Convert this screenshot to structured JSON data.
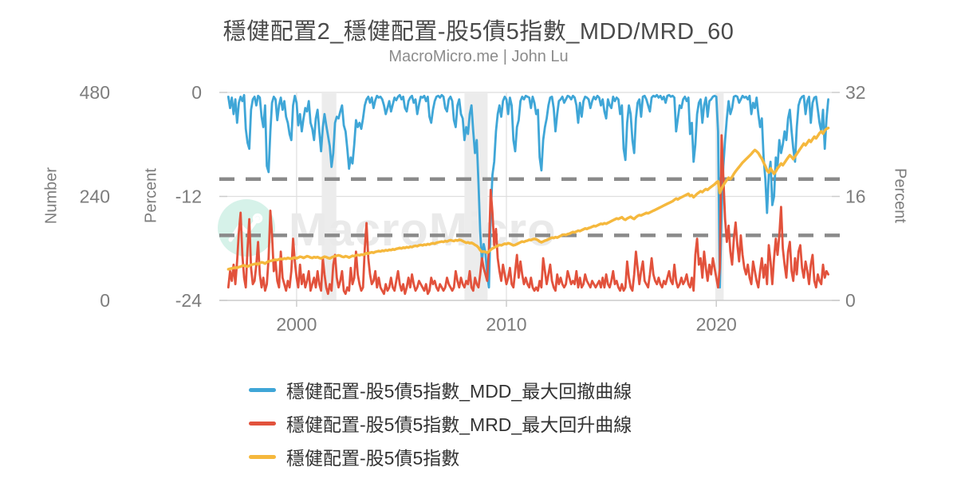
{
  "title": "穩健配置2_穩健配置-股5債5指數_MDD/MRD_60",
  "subtitle": "MacroMicro.me | John Lu",
  "watermark": {
    "text": "MacroMicro",
    "icon": "macromicro-line-chart-logo",
    "circle_color": "#d6f2e9",
    "text_color": "#eaeaea"
  },
  "colors": {
    "grid": "#dedede",
    "axis_line": "#cccccc",
    "tick_label": "#7d7d7d",
    "dashed_threshold": "#8a8a8a",
    "recession_band": "#ececec",
    "background": "#ffffff"
  },
  "chart_data": {
    "type": "line",
    "title": "穩健配置2_穩健配置-股5債5指數_MDD/MRD_60",
    "subtitle": "MacroMicro.me | John Lu",
    "x_start": 1996.75,
    "x_step_years": 0.0833333,
    "x_domain": [
      1996.7,
      2025.5
    ],
    "x_ticks": [
      2000,
      2010,
      2020
    ],
    "grid": "on",
    "legend_position": "bottom",
    "axes": {
      "left_outer": {
        "title": "Number",
        "ticks": [
          480,
          240,
          0
        ],
        "range": [
          0,
          480
        ]
      },
      "left_inner": {
        "title": "Percent",
        "ticks": [
          0,
          -12,
          -24
        ],
        "range": [
          -24,
          0
        ]
      },
      "right": {
        "title": "Percent",
        "ticks": [
          32,
          16,
          0
        ],
        "range": [
          0,
          32
        ]
      }
    },
    "thresholds": [
      {
        "axis": "left_inner",
        "value": -10
      },
      {
        "axis": "right",
        "value": 10
      }
    ],
    "recession_bands": [
      [
        2001.2,
        2001.9
      ],
      [
        2008.0,
        2009.1
      ],
      [
        2019.95,
        2020.35
      ]
    ],
    "series": [
      {
        "name": "穩健配置-股5債5指數_MDD_最大回撤曲線",
        "axis": "left_inner",
        "color": "#3fa6d7",
        "width": 2.8,
        "values": [
          -0.5,
          -1.8,
          -0.6,
          -2.5,
          -0.8,
          -3.5,
          -1.2,
          -0.5,
          -1.0,
          -0.3,
          -4.2,
          -5.8,
          -6.5,
          -2.0,
          -0.8,
          -0.5,
          -1.5,
          -0.4,
          -0.6,
          -2.8,
          -4.0,
          -1.5,
          -8.5,
          -9.2,
          -4.5,
          -1.2,
          -0.5,
          -0.8,
          -3.2,
          -1.5,
          -0.6,
          -2.0,
          -1.0,
          -2.8,
          -3.5,
          -4.8,
          -5.5,
          -1.5,
          -0.4,
          -1.2,
          -3.8,
          -2.5,
          -4.5,
          -3.0,
          -1.8,
          -2.2,
          -1.0,
          -3.5,
          -4.2,
          -5.5,
          -3.0,
          -2.0,
          -4.5,
          -6.8,
          -4.0,
          -2.5,
          -3.8,
          -5.0,
          -6.2,
          -8.6,
          -7.0,
          -3.5,
          -2.8,
          -3.0,
          -2.2,
          -1.5,
          -3.8,
          -4.5,
          -6.5,
          -8.8,
          -7.5,
          -8.2,
          -6.0,
          -3.2,
          -4.0,
          -3.5,
          -4.2,
          -3.0,
          -1.5,
          -0.8,
          -0.5,
          -1.2,
          -0.6,
          -1.8,
          -0.9,
          -0.4,
          -0.6,
          -0.5,
          -0.8,
          -1.5,
          -2.5,
          -1.8,
          -1.0,
          -2.2,
          -1.4,
          -0.6,
          -0.9,
          -0.5,
          -0.3,
          -0.8,
          -0.5,
          -1.8,
          -2.2,
          -1.0,
          -0.6,
          -0.4,
          -1.2,
          -0.8,
          -2.5,
          -1.4,
          -0.5,
          -0.6,
          -0.4,
          -1.0,
          -0.5,
          -2.8,
          -3.5,
          -2.0,
          -1.0,
          -0.5,
          -0.4,
          -0.6,
          -0.3,
          -0.5,
          -1.8,
          -2.2,
          -0.8,
          -0.5,
          -1.0,
          -3.2,
          -4.0,
          -1.5,
          -0.8,
          -2.5,
          -3.0,
          -5.5,
          -4.0,
          -4.8,
          -2.5,
          -1.5,
          -4.5,
          -7.0,
          -5.5,
          -10.5,
          -16.0,
          -19.5,
          -17.5,
          -18.5,
          -21.0,
          -22.5,
          -14.0,
          -9.5,
          -8.0,
          -4.5,
          -2.5,
          -1.5,
          -2.8,
          -1.0,
          -0.5,
          -0.8,
          -2.5,
          -0.6,
          -1.5,
          -5.5,
          -6.8,
          -4.0,
          -3.2,
          -1.0,
          -0.5,
          -0.8,
          -0.4,
          -0.5,
          -0.6,
          -1.8,
          -0.5,
          -1.2,
          -2.5,
          -2.0,
          -7.5,
          -9.0,
          -5.5,
          -4.0,
          -3.0,
          -1.5,
          -0.6,
          -0.5,
          -1.8,
          -4.5,
          -2.5,
          -1.0,
          -0.8,
          -0.5,
          -1.2,
          -0.8,
          -0.4,
          -0.5,
          -0.8,
          -0.4,
          -0.6,
          -1.5,
          -3.5,
          -1.2,
          -2.8,
          -1.0,
          -0.5,
          -0.6,
          -0.8,
          -1.8,
          -1.0,
          -0.5,
          -0.8,
          -0.4,
          -0.6,
          -1.5,
          -0.8,
          -2.2,
          -3.0,
          -0.8,
          -1.5,
          -1.8,
          -0.5,
          -1.0,
          -0.6,
          -0.8,
          -2.5,
          -1.5,
          -6.5,
          -7.8,
          -3.5,
          -1.5,
          -2.5,
          -5.5,
          -7.0,
          -3.0,
          -1.2,
          -0.8,
          -2.8,
          -0.5,
          -0.4,
          -0.8,
          -1.5,
          -2.2,
          -0.6,
          -0.4,
          -0.5,
          -0.3,
          -0.6,
          -0.4,
          -0.8,
          -0.5,
          -1.2,
          -0.4,
          -0.3,
          -0.5,
          -0.4,
          -0.6,
          -4.5,
          -3.0,
          -1.5,
          -1.8,
          -0.8,
          -0.5,
          -1.0,
          -0.6,
          -4.8,
          -3.5,
          -8.0,
          -6.0,
          -2.5,
          -1.2,
          -0.8,
          -3.5,
          -1.5,
          -0.6,
          -2.8,
          -1.0,
          -0.8,
          -0.5,
          -0.4,
          -0.5,
          -4.5,
          -22.5,
          -14.0,
          -8.5,
          -5.5,
          -3.0,
          -1.0,
          -2.5,
          -1.8,
          -0.5,
          -0.4,
          -0.5,
          -1.2,
          -0.8,
          -0.4,
          -0.6,
          -0.5,
          -0.8,
          -0.4,
          -2.5,
          -1.2,
          -1.8,
          -0.6,
          -2.5,
          -4.0,
          -3.0,
          -7.5,
          -10.0,
          -13.9,
          -9.5,
          -8.0,
          -13.0,
          -12.0,
          -7.5,
          -8.5,
          -5.5,
          -7.0,
          -6.0,
          -4.5,
          -5.5,
          -3.0,
          -2.0,
          -4.5,
          -6.5,
          -8.0,
          -4.0,
          -1.5,
          -0.8,
          -0.5,
          -0.4,
          -2.5,
          -1.0,
          -0.5,
          -3.5,
          -1.2,
          -0.6,
          -0.5,
          -2.0,
          -3.5,
          -4.5,
          -2.0,
          -6.5,
          -3.0,
          -0.8
        ]
      },
      {
        "name": "穩健配置-股5債5指數_MRD_最大回升曲線",
        "axis": "right",
        "color": "#e2523c",
        "width": 2.8,
        "values": [
          2.0,
          4.5,
          3.0,
          5.5,
          2.5,
          6.0,
          10.5,
          13.5,
          7.0,
          3.5,
          2.0,
          8.0,
          12.5,
          5.0,
          2.5,
          3.0,
          5.5,
          9.0,
          4.0,
          2.0,
          3.5,
          1.5,
          2.5,
          6.5,
          13.8,
          10.0,
          4.5,
          6.0,
          3.0,
          2.0,
          7.5,
          3.5,
          2.5,
          1.5,
          3.0,
          2.0,
          4.5,
          9.5,
          6.0,
          3.5,
          2.0,
          5.5,
          2.5,
          4.0,
          2.0,
          3.0,
          4.5,
          1.5,
          2.5,
          3.5,
          2.0,
          4.5,
          2.5,
          1.5,
          6.5,
          4.0,
          2.0,
          1.0,
          2.5,
          1.5,
          5.5,
          7.0,
          3.5,
          2.0,
          3.0,
          4.5,
          1.5,
          1.0,
          2.0,
          1.5,
          5.0,
          2.5,
          3.5,
          7.5,
          4.0,
          2.5,
          1.5,
          2.0,
          8.0,
          11.9,
          6.5,
          4.0,
          2.5,
          3.0,
          4.5,
          2.0,
          3.5,
          2.0,
          1.5,
          1.0,
          2.5,
          1.5,
          2.0,
          3.5,
          2.0,
          1.5,
          3.0,
          4.5,
          2.5,
          1.5,
          2.5,
          1.0,
          2.0,
          3.5,
          2.0,
          4.0,
          2.5,
          1.5,
          2.0,
          3.0,
          2.5,
          2.0,
          1.5,
          2.5,
          1.0,
          1.5,
          3.5,
          2.5,
          3.0,
          2.0,
          1.5,
          2.5,
          2.0,
          1.5,
          2.0,
          3.5,
          2.5,
          2.0,
          1.5,
          2.0,
          4.5,
          3.0,
          2.0,
          3.5,
          2.5,
          2.0,
          3.0,
          2.5,
          4.5,
          2.0,
          1.5,
          3.5,
          2.5,
          2.0,
          4.0,
          6.5,
          5.0,
          4.0,
          3.0,
          8.0,
          17.0,
          13.5,
          8.5,
          11.0,
          6.5,
          4.5,
          3.0,
          5.5,
          4.0,
          2.5,
          3.5,
          5.0,
          2.5,
          2.0,
          4.5,
          7.0,
          3.5,
          6.0,
          4.0,
          2.5,
          3.5,
          2.5,
          2.0,
          3.5,
          2.0,
          1.5,
          2.0,
          1.5,
          3.0,
          2.0,
          6.5,
          4.5,
          2.5,
          4.0,
          5.5,
          3.0,
          2.0,
          1.5,
          4.0,
          2.5,
          3.5,
          2.5,
          2.0,
          2.5,
          4.5,
          3.5,
          2.5,
          3.0,
          2.5,
          4.5,
          2.0,
          3.5,
          2.0,
          2.5,
          4.0,
          3.0,
          2.5,
          2.0,
          3.0,
          2.5,
          2.0,
          2.5,
          3.0,
          2.0,
          3.5,
          2.0,
          4.0,
          2.5,
          2.0,
          3.0,
          4.5,
          2.5,
          3.0,
          2.0,
          1.5,
          2.5,
          1.5,
          2.0,
          6.0,
          3.5,
          2.0,
          1.5,
          4.0,
          7.5,
          5.0,
          2.5,
          4.5,
          6.0,
          3.0,
          2.5,
          2.0,
          4.0,
          6.5,
          4.0,
          3.0,
          2.5,
          3.5,
          2.5,
          2.0,
          3.0,
          2.5,
          3.5,
          4.5,
          3.0,
          2.5,
          5.5,
          3.0,
          2.0,
          2.5,
          3.5,
          2.5,
          3.0,
          4.0,
          2.5,
          2.0,
          3.5,
          1.5,
          7.0,
          9.5,
          5.5,
          6.5,
          3.5,
          7.5,
          5.0,
          3.0,
          5.5,
          4.0,
          6.5,
          5.0,
          3.5,
          2.0,
          5.0,
          25.4,
          19.0,
          12.5,
          9.0,
          11.5,
          7.5,
          5.5,
          9.5,
          12.0,
          8.5,
          6.0,
          10.0,
          7.0,
          5.0,
          4.0,
          5.5,
          3.5,
          2.5,
          6.0,
          4.5,
          3.0,
          2.0,
          4.5,
          6.5,
          3.5,
          5.5,
          2.5,
          8.5,
          6.0,
          2.5,
          6.5,
          9.5,
          7.0,
          10.0,
          14.4,
          8.0,
          5.5,
          3.5,
          7.5,
          9.0,
          4.5,
          3.0,
          6.5,
          4.0,
          7.5,
          8.5,
          5.0,
          3.5,
          6.0,
          4.5,
          2.5,
          5.5,
          7.0,
          3.0,
          2.0,
          4.0,
          3.0,
          2.5,
          5.5,
          3.5,
          4.5,
          4.0
        ]
      },
      {
        "name": "穩健配置-股5債5指數",
        "axis": "left_outer",
        "color": "#f5b83d",
        "width": 3.4,
        "values": [
          72,
          73,
          74,
          75,
          76,
          75,
          77,
          78,
          80,
          81,
          79,
          78,
          80,
          82,
          83,
          84,
          85,
          83,
          86,
          88,
          87,
          85,
          88,
          90,
          91,
          92,
          93,
          94,
          93,
          95,
          96,
          95,
          97,
          96,
          98,
          97,
          96,
          98,
          99,
          97,
          99,
          101,
          100,
          98,
          100,
          102,
          101,
          99,
          98,
          100,
          99,
          100,
          98,
          97,
          99,
          101,
          100,
          98,
          97,
          99,
          101,
          102,
          103,
          104,
          103,
          101,
          100,
          102,
          101,
          99,
          101,
          103,
          102,
          104,
          105,
          104,
          106,
          105,
          107,
          109,
          108,
          110,
          111,
          110,
          112,
          113,
          114,
          113,
          115,
          114,
          116,
          115,
          117,
          116,
          118,
          117,
          119,
          120,
          121,
          120,
          122,
          121,
          123,
          122,
          124,
          123,
          125,
          126,
          125,
          127,
          128,
          127,
          129,
          128,
          130,
          129,
          131,
          132,
          131,
          133,
          134,
          135,
          136,
          135,
          137,
          136,
          138,
          139,
          138,
          137,
          139,
          138,
          140,
          139,
          137,
          135,
          133,
          134,
          132,
          133,
          131,
          128,
          126,
          122,
          116,
          112,
          113,
          112,
          110,
          113,
          117,
          120,
          122,
          124,
          126,
          128,
          127,
          129,
          131,
          130,
          132,
          131,
          129,
          127,
          128,
          130,
          132,
          134,
          136,
          135,
          137,
          138,
          140,
          139,
          141,
          142,
          141,
          139,
          136,
          134,
          136,
          138,
          139,
          141,
          143,
          145,
          144,
          146,
          145,
          147,
          149,
          151,
          152,
          151,
          153,
          154,
          156,
          158,
          157,
          159,
          161,
          160,
          162,
          164,
          166,
          165,
          167,
          168,
          170,
          172,
          171,
          173,
          175,
          177,
          176,
          178,
          177,
          179,
          181,
          183,
          185,
          187,
          189,
          188,
          190,
          192,
          188,
          186,
          189,
          191,
          193,
          190,
          188,
          192,
          195,
          197,
          196,
          198,
          200,
          202,
          201,
          203,
          205,
          207,
          209,
          211,
          213,
          215,
          217,
          219,
          221,
          223,
          225,
          227,
          229,
          232,
          235,
          233,
          236,
          238,
          240,
          242,
          244,
          246,
          241,
          243,
          238,
          242,
          246,
          249,
          252,
          250,
          254,
          257,
          255,
          259,
          262,
          265,
          268,
          272,
          275,
          248,
          258,
          266,
          272,
          278,
          283,
          280,
          285,
          292,
          298,
          303,
          308,
          313,
          318,
          322,
          326,
          330,
          334,
          338,
          343,
          347,
          344,
          340,
          333,
          327,
          318,
          310,
          300,
          295,
          305,
          298,
          292,
          298,
          305,
          310,
          316,
          312,
          318,
          324,
          330,
          335,
          331,
          326,
          332,
          338,
          344,
          350,
          356,
          362,
          358,
          364,
          370,
          366,
          372,
          378,
          374,
          380,
          386,
          390,
          385,
          392,
          396,
          398
        ]
      }
    ]
  },
  "legend": {
    "items": [
      {
        "label": "穩健配置-股5債5指數_MDD_最大回撤曲線",
        "color": "#3fa6d7"
      },
      {
        "label": "穩健配置-股5債5指數_MRD_最大回升曲線",
        "color": "#e2523c"
      },
      {
        "label": "穩健配置-股5債5指數",
        "color": "#f5b83d"
      }
    ]
  }
}
